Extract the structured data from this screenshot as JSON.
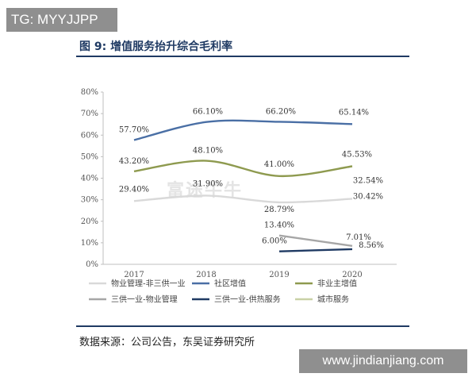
{
  "watermark_top": "TG: MYYJJPP",
  "watermark_bottom": "www.jindianjiang.com",
  "watermark_center": "富途牛牛",
  "figure_title": "图 9:  增值服务抬升综合毛利率",
  "source": "数据来源：公司公告，东吴证券研究所",
  "colors": {
    "title": "#1f3a63",
    "物业管理-非三供一业": "#d9d9d9",
    "社区增值": "#4a6fa5",
    "非业主增值": "#8e9a4f",
    "三供一业-物业管理": "#a6a6a6",
    "三供一业-供热服务": "#1f3a63",
    "城市服务": "#c9d1a6"
  },
  "chart_data": {
    "type": "line",
    "categories": [
      "2017",
      "2018",
      "2019",
      "2020"
    ],
    "ylim": [
      0,
      80
    ],
    "yticks": [
      "0%",
      "10%",
      "20%",
      "30%",
      "40%",
      "50%",
      "60%",
      "70%",
      "80%"
    ],
    "yunit": "%",
    "grid": false,
    "legend_position": "bottom",
    "series": [
      {
        "name": "物业管理-非三供一业",
        "values": [
          29.4,
          31.9,
          28.79,
          30.42
        ],
        "labels": [
          "29.40%",
          "31.90%",
          "28.79%",
          "30.42%"
        ]
      },
      {
        "name": "社区增值",
        "values": [
          57.7,
          66.1,
          66.2,
          65.14
        ],
        "labels": [
          "57.70%",
          "66.10%",
          "66.20%",
          "65.14%"
        ]
      },
      {
        "name": "非业主增值",
        "values": [
          43.2,
          48.1,
          41.0,
          45.53
        ],
        "labels": [
          "43.20%",
          "48.10%",
          "41.00%",
          "45.53%"
        ]
      },
      {
        "name": "三供一业-物业管理",
        "values": [
          null,
          null,
          13.4,
          8.56
        ],
        "labels": [
          "",
          "",
          "13.40%",
          "8.56%"
        ]
      },
      {
        "name": "三供一业-供热服务",
        "values": [
          null,
          null,
          6.0,
          7.01
        ],
        "labels": [
          "",
          "",
          "6.00%",
          "7.01%"
        ]
      },
      {
        "name": "城市服务",
        "values": [
          null,
          null,
          null,
          32.54
        ],
        "labels": [
          "",
          "",
          "",
          "32.54%"
        ]
      }
    ]
  }
}
